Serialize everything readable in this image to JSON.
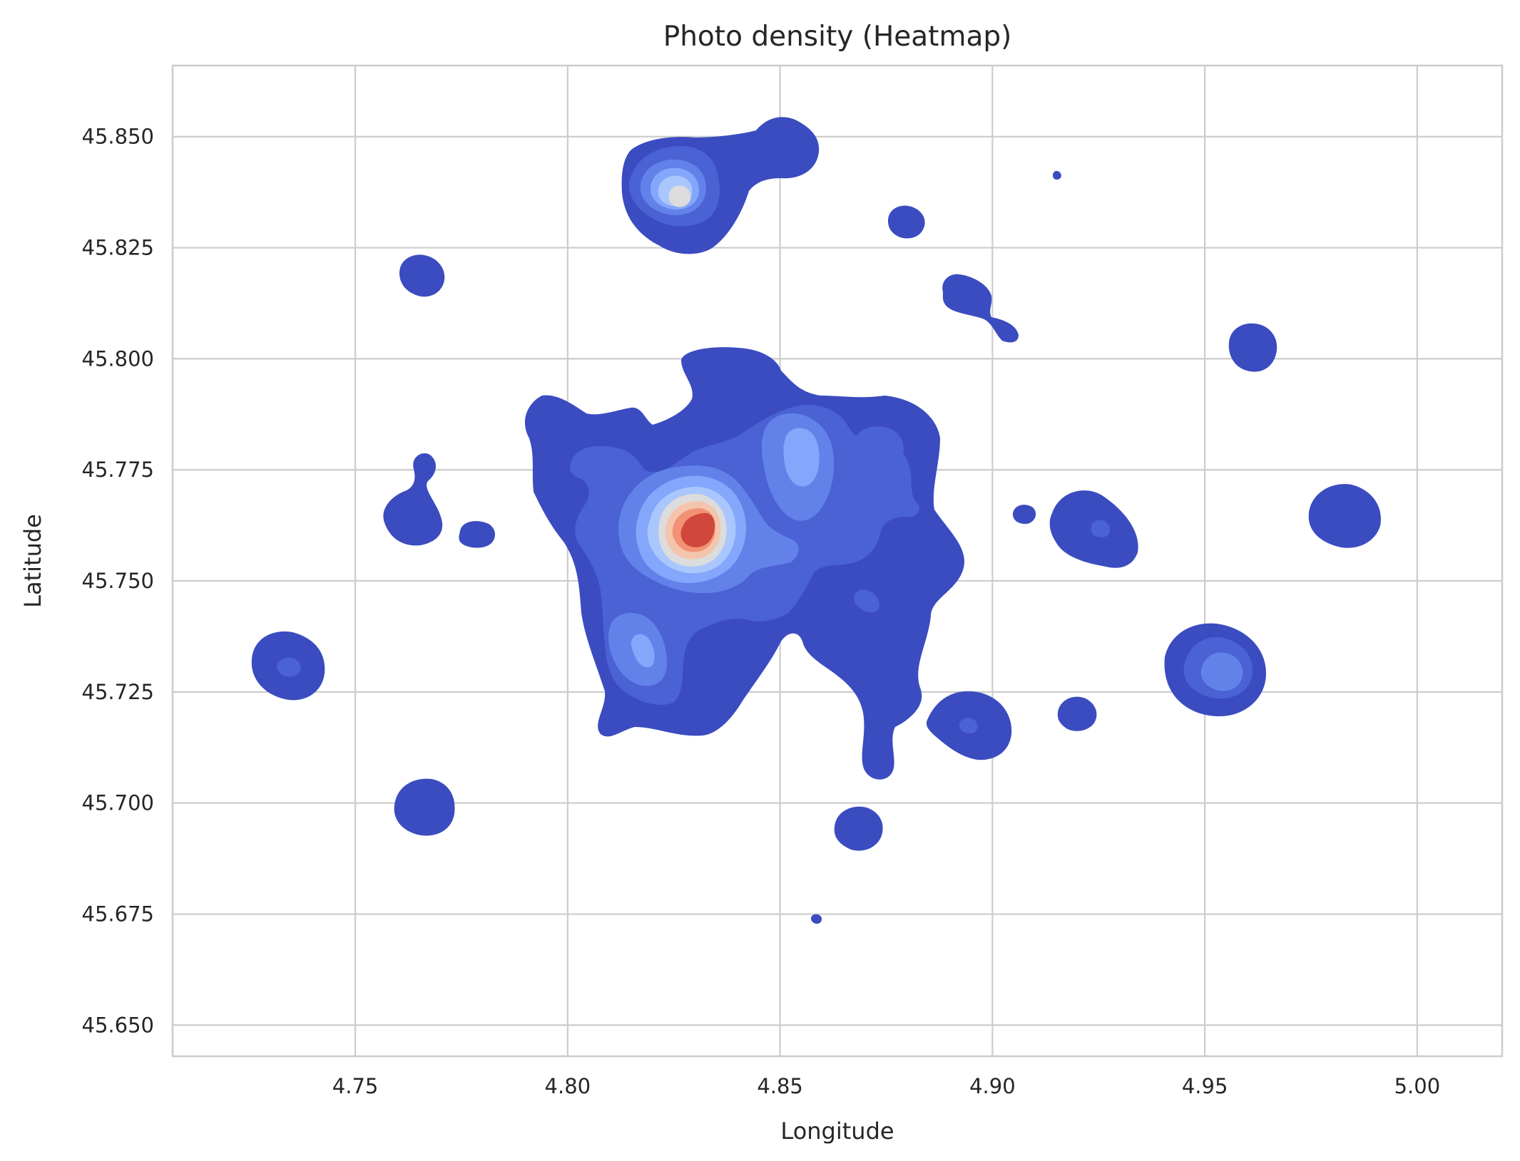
{
  "chart_data": {
    "type": "heatmap",
    "style": "kde-contour-filled",
    "title": "Photo density (Heatmap)",
    "xlabel": "Longitude",
    "ylabel": "Latitude",
    "xlim": [
      4.707,
      5.02
    ],
    "ylim": [
      45.643,
      45.866
    ],
    "xticks": [
      4.75,
      4.8,
      4.85,
      4.9,
      4.95,
      5.0
    ],
    "xtick_labels": [
      "4.75",
      "4.80",
      "4.85",
      "4.90",
      "4.95",
      "5.00"
    ],
    "yticks": [
      45.65,
      45.675,
      45.7,
      45.725,
      45.75,
      45.775,
      45.8,
      45.825,
      45.85
    ],
    "ytick_labels": [
      "45.650",
      "45.675",
      "45.700",
      "45.725",
      "45.750",
      "45.775",
      "45.800",
      "45.825",
      "45.850"
    ],
    "grid": true,
    "colormap": [
      "#3b4cc0",
      "#4a62d4",
      "#6282ea",
      "#84a7fc",
      "#aac7fd",
      "#dddcdc",
      "#f4c5ad",
      "#f29274",
      "#d0473d"
    ],
    "density_hotspots": [
      {
        "lon": 4.831,
        "lat": 45.763,
        "level": 8
      },
      {
        "lon": 4.827,
        "lat": 45.837,
        "level": 5
      },
      {
        "lon": 4.854,
        "lat": 45.778,
        "level": 3
      },
      {
        "lon": 4.818,
        "lat": 45.736,
        "level": 3
      },
      {
        "lon": 4.951,
        "lat": 45.731,
        "level": 2
      },
      {
        "lon": 4.876,
        "lat": 45.781,
        "level": 1
      },
      {
        "lon": 4.735,
        "lat": 45.731,
        "level": 1
      },
      {
        "lon": 4.924,
        "lat": 45.763,
        "level": 1
      },
      {
        "lon": 4.894,
        "lat": 45.718,
        "level": 1
      },
      {
        "lon": 4.873,
        "lat": 45.748,
        "level": 1
      }
    ]
  }
}
